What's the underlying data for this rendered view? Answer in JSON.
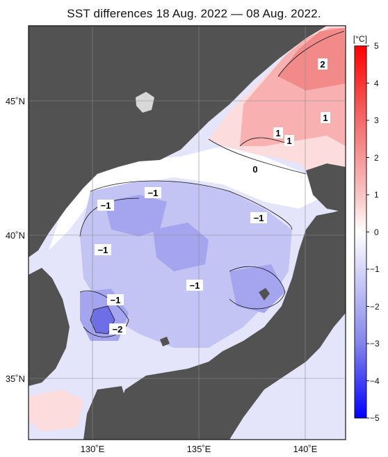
{
  "title": "SST differences 18 Aug. 2022 — 08 Aug. 2022.",
  "colorbar": {
    "unit": "[°C]",
    "ticks": [
      "5",
      "4",
      "3",
      "2",
      "1",
      "0",
      "−1",
      "−2",
      "−3",
      "−4",
      "−5"
    ]
  },
  "lat_labels": [
    "45˚N",
    "40˚N",
    "35˚N"
  ],
  "lon_labels": [
    "130˚E",
    "135˚E",
    "140˚E"
  ],
  "contour_labels": [
    "2",
    "1",
    "1",
    "1",
    "0",
    "−1",
    "−1",
    "−1",
    "−1",
    "−1",
    "−1",
    "−2"
  ],
  "colors": {
    "land": "#525252",
    "warm_strong": "#f07070",
    "warm_mid": "#f8b0b0",
    "warm_light": "#fcdcdc",
    "neutral": "#ffffff",
    "cool_light": "#e4e4fb",
    "cool_mid": "#c4c4f4",
    "cool_strong": "#9c9cee",
    "cool_deep": "#6262e4"
  }
}
